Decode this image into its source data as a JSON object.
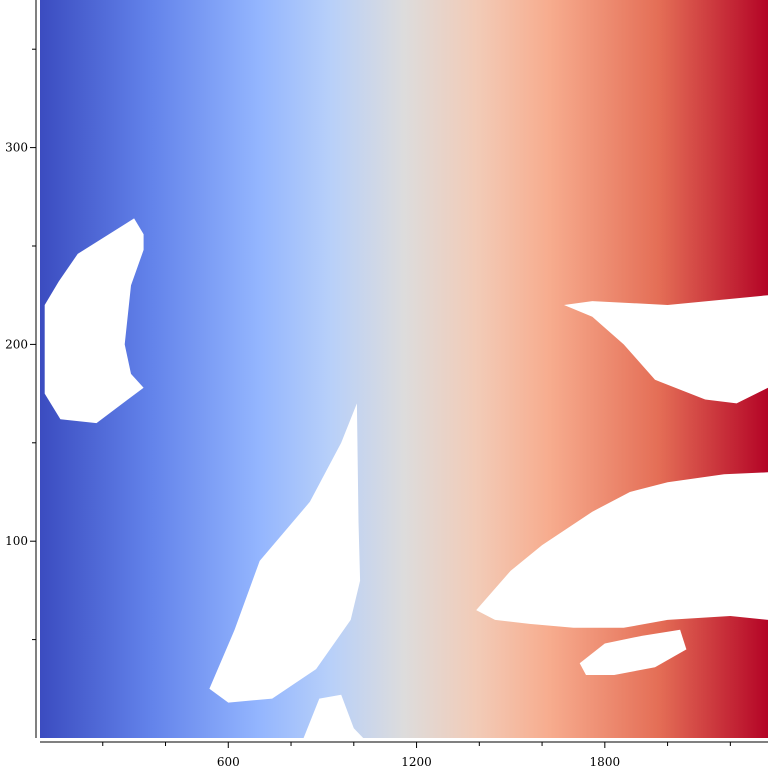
{
  "chart_data": {
    "type": "heatmap",
    "title": "",
    "xlabel": "",
    "ylabel": "",
    "colormap": "coolwarm",
    "colors": {
      "low": "#3b4cc0",
      "mid": "#dddcdc",
      "high": "#b40426",
      "masked": "#ffffff"
    },
    "field": "value increases linearly from left to right (x direction); masked regions are shown in white",
    "xlim": [
      0,
      2320
    ],
    "ylim": [
      0,
      375
    ],
    "xticks": {
      "major": [
        600,
        1200,
        1800
      ],
      "minor": [
        200,
        400,
        800,
        1000,
        1400,
        1600,
        2000,
        2200
      ],
      "labels": [
        "600",
        "1200",
        "1800"
      ]
    },
    "yticks": {
      "major": [
        100,
        200,
        300
      ],
      "minor": [
        50,
        150,
        250,
        350
      ],
      "labels": [
        "100",
        "200",
        "300"
      ]
    },
    "masked_regions": [
      {
        "name": "upper-left-blob",
        "outline": [
          [
            15,
            220
          ],
          [
            60,
            232
          ],
          [
            120,
            246
          ],
          [
            300,
            264
          ],
          [
            330,
            256
          ],
          [
            330,
            248
          ],
          [
            290,
            230
          ],
          [
            270,
            200
          ],
          [
            290,
            185
          ],
          [
            330,
            178
          ],
          [
            180,
            160
          ],
          [
            65,
            162
          ],
          [
            15,
            175
          ]
        ]
      },
      {
        "name": "center-left-blob",
        "outline": [
          [
            540,
            25
          ],
          [
            620,
            55
          ],
          [
            700,
            90
          ],
          [
            860,
            120
          ],
          [
            960,
            150
          ],
          [
            1010,
            170
          ],
          [
            1015,
            110
          ],
          [
            1020,
            80
          ],
          [
            990,
            60
          ],
          [
            880,
            35
          ],
          [
            740,
            20
          ],
          [
            600,
            18
          ]
        ]
      },
      {
        "name": "lower-center-blob",
        "outline": [
          [
            840,
            0
          ],
          [
            890,
            20
          ],
          [
            960,
            22
          ],
          [
            1000,
            5
          ],
          [
            1030,
            0
          ]
        ]
      },
      {
        "name": "right-upper-blob",
        "outline": [
          [
            1670,
            220
          ],
          [
            1760,
            222
          ],
          [
            2000,
            220
          ],
          [
            2320,
            225
          ],
          [
            2320,
            178
          ],
          [
            2220,
            170
          ],
          [
            2120,
            172
          ],
          [
            1960,
            182
          ],
          [
            1860,
            200
          ],
          [
            1760,
            214
          ]
        ]
      },
      {
        "name": "right-lower-blob",
        "outline": [
          [
            1390,
            65
          ],
          [
            1500,
            85
          ],
          [
            1600,
            98
          ],
          [
            1760,
            115
          ],
          [
            1880,
            125
          ],
          [
            2000,
            130
          ],
          [
            2180,
            134
          ],
          [
            2320,
            135
          ],
          [
            2320,
            60
          ],
          [
            2200,
            62
          ],
          [
            2000,
            60
          ],
          [
            1860,
            56
          ],
          [
            1700,
            56
          ],
          [
            1560,
            58
          ],
          [
            1450,
            60
          ]
        ]
      },
      {
        "name": "right-bottom-strip",
        "outline": [
          [
            1720,
            38
          ],
          [
            1800,
            48
          ],
          [
            1920,
            52
          ],
          [
            2040,
            55
          ],
          [
            2060,
            45
          ],
          [
            1960,
            36
          ],
          [
            1830,
            32
          ],
          [
            1740,
            32
          ]
        ]
      }
    ]
  }
}
